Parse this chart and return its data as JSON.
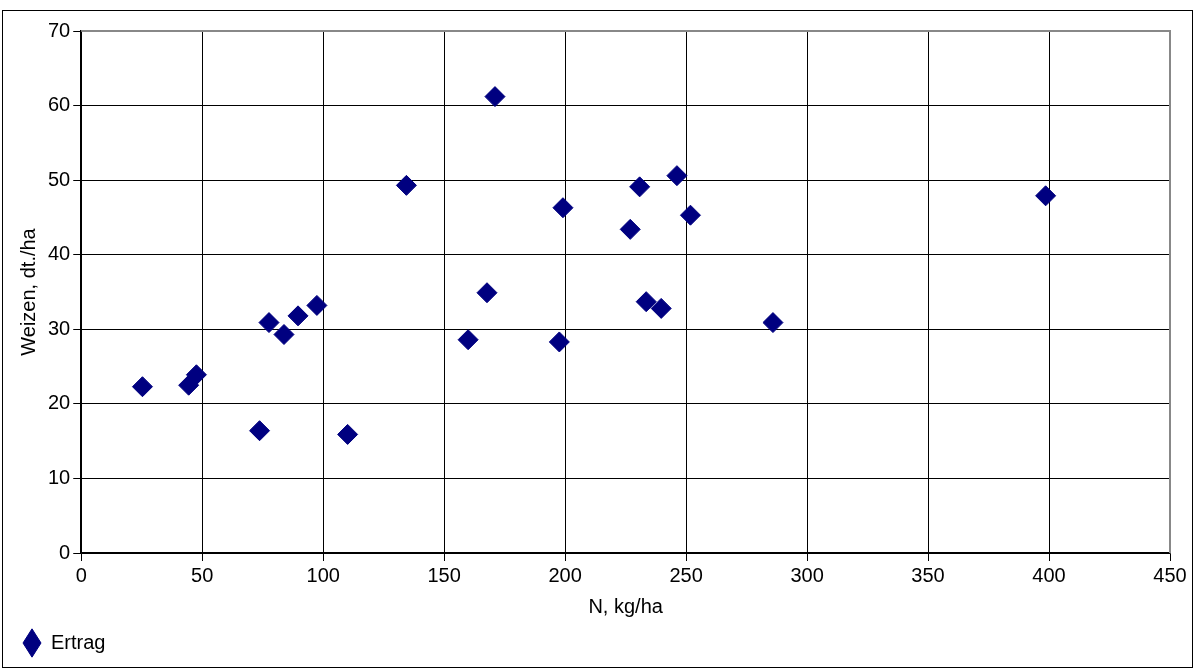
{
  "chart_data": {
    "type": "scatter",
    "xlabel": "N, kg/ha",
    "ylabel": "Weizen, dt./ha",
    "xlim": [
      0,
      450
    ],
    "xticks": [
      0,
      50,
      100,
      150,
      200,
      250,
      300,
      350,
      400,
      450
    ],
    "ylim": [
      0,
      70
    ],
    "yticks": [
      0,
      10,
      20,
      30,
      40,
      50,
      60,
      70
    ],
    "grid": true,
    "legend": "bottom left",
    "marker": "diamond",
    "series": [
      {
        "name": "Ertrag",
        "color": "#000080",
        "x": [
          25.3,
          44.4,
          47.6,
          73.7,
          77.6,
          83.8,
          89.6,
          97.4,
          110.1,
          134.4,
          159.9,
          167.7,
          171.0,
          197.6,
          199.1,
          226.9,
          230.8,
          233.5,
          239.7,
          246.2,
          251.8,
          285.9,
          398.6
        ],
        "values": [
          22.3,
          22.5,
          23.9,
          16.4,
          30.9,
          29.3,
          31.8,
          33.2,
          15.9,
          49.3,
          28.6,
          34.9,
          61.2,
          28.3,
          46.3,
          43.4,
          49.1,
          33.7,
          32.8,
          50.6,
          45.3,
          30.9,
          47.9
        ]
      }
    ]
  }
}
